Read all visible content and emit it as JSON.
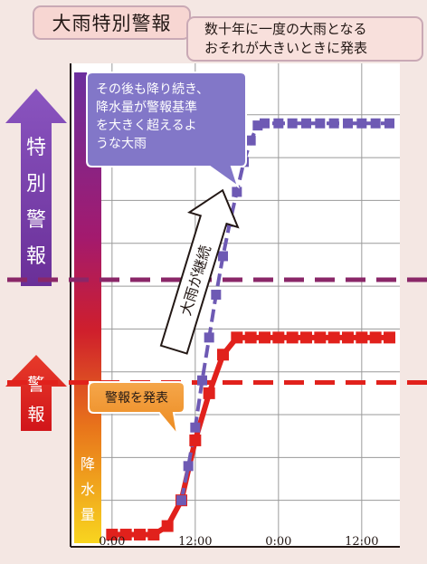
{
  "header": {
    "title": "大雨特別警報",
    "description_line1": "数十年に一度の大雨となる",
    "description_line2": "おそれが大きいときに発表"
  },
  "side": {
    "special_warning_label": [
      "特",
      "別",
      "警",
      "報"
    ],
    "warning_label": [
      "警",
      "報"
    ],
    "rainfall_label": [
      "降",
      "水",
      "量"
    ]
  },
  "annotations": {
    "special_callout": [
      "その後も降り続き、",
      "降水量が警報基準",
      "を大きく超えるよ",
      "うな大雨"
    ],
    "warning_callout": "警報を発表",
    "continue_label": "大雨が継続"
  },
  "colors": {
    "special_warning": "#6e5ab4",
    "warning": "#e1211c",
    "special_threshold_line": "#8a2768",
    "warning_threshold_line": "#e1211c",
    "special_arrow": "#7b3fa0",
    "warning_arrow": "#d9211f"
  },
  "chart_data": {
    "type": "line",
    "title": "",
    "xlabel": "",
    "ylabel": "降水量",
    "x_ticks": [
      "0:00",
      "12:00",
      "0:00",
      "12:00"
    ],
    "x_tick_hours": [
      0,
      12,
      24,
      36
    ],
    "xlim": [
      -0.5,
      41.5
    ],
    "ylim": [
      0,
      11.2
    ],
    "grid": true,
    "thresholds": [
      {
        "name": "特別警報",
        "value": 6.15
      },
      {
        "name": "警報",
        "value": 3.75
      }
    ],
    "series": [
      {
        "name": "警報",
        "x": [
          0,
          2,
          4,
          6,
          8,
          10,
          12,
          14,
          16,
          18,
          20,
          22,
          24,
          26,
          28,
          30,
          32,
          34,
          36,
          38,
          40
        ],
        "y": [
          0.2,
          0.2,
          0.2,
          0.2,
          0.4,
          1.0,
          2.4,
          3.5,
          4.4,
          4.8,
          4.8,
          4.8,
          4.8,
          4.8,
          4.8,
          4.8,
          4.8,
          4.8,
          4.8,
          4.8,
          4.8
        ]
      },
      {
        "name": "特別警報",
        "x": [
          10,
          11,
          12,
          13,
          14,
          15,
          16,
          17,
          18,
          19,
          20,
          21,
          22,
          24,
          26,
          28,
          30,
          32,
          34,
          36,
          38,
          40
        ],
        "y": [
          1.0,
          1.8,
          2.7,
          3.8,
          4.8,
          5.8,
          6.7,
          7.5,
          8.2,
          8.9,
          9.4,
          9.75,
          9.8,
          9.8,
          9.8,
          9.8,
          9.8,
          9.8,
          9.8,
          9.8,
          9.8,
          9.8
        ]
      }
    ]
  }
}
